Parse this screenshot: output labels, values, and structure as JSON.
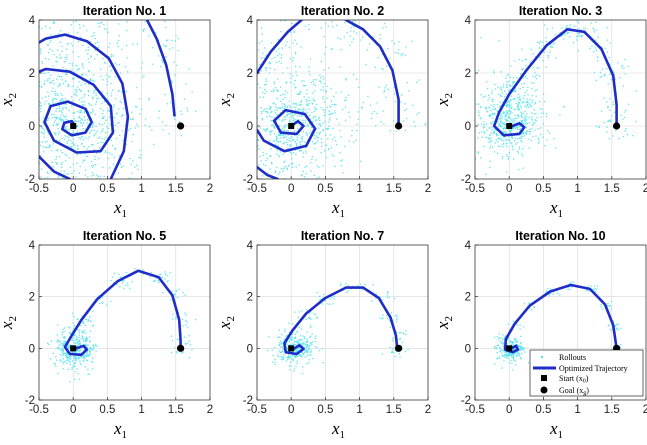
{
  "chart_data": [
    {
      "type": "scatter",
      "title": "Iteration No. 1",
      "xlabel": "x",
      "xlabel_sub": "1",
      "ylabel": "x",
      "ylabel_sub": "2",
      "xlim": [
        -0.5,
        2
      ],
      "ylim": [
        -2,
        4
      ],
      "xticks": [
        "-0.5",
        "0",
        "0.5",
        "1",
        "1.5",
        "2"
      ],
      "yticks": [
        "-2",
        "0",
        "2",
        "4"
      ],
      "grid": true,
      "start": [
        0,
        0
      ],
      "goal": [
        1.57,
        0
      ],
      "trajectory": {
        "segments": [
          [
            [
              0.03,
              0.0
            ],
            [
              -0.02,
              0.18
            ],
            [
              -0.13,
              0.12
            ],
            [
              -0.16,
              -0.12
            ],
            [
              -0.02,
              -0.35
            ],
            [
              0.18,
              -0.25
            ],
            [
              0.27,
              0.15
            ],
            [
              0.18,
              0.65
            ],
            [
              -0.08,
              0.92
            ],
            [
              -0.33,
              0.75
            ],
            [
              -0.42,
              0.15
            ],
            [
              -0.28,
              -0.55
            ],
            [
              0.05,
              -1.0
            ],
            [
              0.4,
              -0.95
            ],
            [
              0.58,
              -0.25
            ],
            [
              0.55,
              0.75
            ],
            [
              0.3,
              1.55
            ],
            [
              -0.05,
              2.05
            ],
            [
              -0.4,
              2.15
            ],
            [
              -0.5,
              2.05
            ]
          ],
          [
            [
              -0.5,
              -1.15
            ],
            [
              -0.28,
              -1.72
            ],
            [
              -0.05,
              -2.0
            ]
          ],
          [
            [
              0.55,
              -2.0
            ],
            [
              0.74,
              -0.95
            ],
            [
              0.8,
              0.35
            ],
            [
              0.72,
              1.6
            ],
            [
              0.52,
              2.55
            ],
            [
              0.2,
              3.2
            ],
            [
              -0.12,
              3.45
            ],
            [
              -0.4,
              3.3
            ],
            [
              -0.5,
              3.15
            ]
          ],
          [
            [
              1.48,
              0.4
            ],
            [
              1.45,
              1.2
            ],
            [
              1.36,
              2.3
            ],
            [
              1.22,
              3.3
            ],
            [
              1.08,
              4.0
            ]
          ]
        ]
      },
      "rollouts": {
        "center": [
          0.0,
          0.3
        ],
        "spread": [
          0.45,
          1.5
        ],
        "count": 1000
      }
    },
    {
      "type": "scatter",
      "title": "Iteration No. 2",
      "xlabel": "x",
      "xlabel_sub": "1",
      "ylabel": "x",
      "ylabel_sub": "2",
      "xlim": [
        -0.5,
        2
      ],
      "ylim": [
        -2,
        4
      ],
      "xticks": [
        "-0.5",
        "0",
        "0.5",
        "1",
        "1.5",
        "2"
      ],
      "yticks": [
        "-2",
        "0",
        "2",
        "4"
      ],
      "grid": true,
      "start": [
        0,
        0
      ],
      "goal": [
        1.57,
        0
      ],
      "trajectory": {
        "segments": [
          [
            [
              0.0,
              0.0
            ],
            [
              0.1,
              0.18
            ],
            [
              0.18,
              0.0
            ],
            [
              0.08,
              -0.3
            ],
            [
              -0.15,
              -0.25
            ],
            [
              -0.25,
              0.2
            ],
            [
              -0.08,
              0.6
            ],
            [
              0.2,
              0.45
            ],
            [
              0.35,
              -0.1
            ],
            [
              0.22,
              -0.75
            ],
            [
              -0.1,
              -0.95
            ],
            [
              -0.4,
              -0.55
            ],
            [
              -0.5,
              -0.15
            ]
          ],
          [
            [
              -0.5,
              -1.55
            ],
            [
              -0.35,
              -1.85
            ],
            [
              -0.2,
              -2.0
            ]
          ],
          [
            [
              -0.5,
              2.0
            ],
            [
              -0.3,
              2.8
            ],
            [
              -0.05,
              3.55
            ],
            [
              0.15,
              4.0
            ]
          ],
          [
            [
              0.8,
              4.0
            ],
            [
              1.05,
              3.65
            ],
            [
              1.3,
              3.0
            ],
            [
              1.48,
              2.1
            ],
            [
              1.57,
              1.0
            ],
            [
              1.57,
              0.0
            ]
          ]
        ]
      },
      "rollouts": {
        "center": [
          0.05,
          0.5
        ],
        "spread": [
          0.45,
          1.2
        ],
        "count": 950
      }
    },
    {
      "type": "scatter",
      "title": "Iteration No. 3",
      "xlabel": "x",
      "xlabel_sub": "1",
      "ylabel": "x",
      "ylabel_sub": "2",
      "xlim": [
        -0.5,
        2
      ],
      "ylim": [
        -2,
        4
      ],
      "xticks": [
        "-0.5",
        "0",
        "0.5",
        "1",
        "1.5",
        "2"
      ],
      "yticks": [
        "-2",
        "0",
        "2",
        "4"
      ],
      "grid": true,
      "start": [
        0,
        0
      ],
      "goal": [
        1.57,
        0
      ],
      "trajectory": {
        "segments": [
          [
            [
              0.05,
              0.0
            ],
            [
              0.15,
              0.1
            ],
            [
              0.22,
              -0.05
            ],
            [
              0.15,
              -0.3
            ],
            [
              -0.08,
              -0.35
            ],
            [
              -0.22,
              0.0
            ],
            [
              -0.15,
              0.5
            ],
            [
              0.0,
              1.2
            ],
            [
              0.25,
              2.1
            ],
            [
              0.55,
              3.05
            ],
            [
              0.85,
              3.65
            ],
            [
              1.1,
              3.55
            ],
            [
              1.35,
              2.9
            ],
            [
              1.52,
              1.9
            ],
            [
              1.57,
              0.8
            ],
            [
              1.57,
              0.0
            ]
          ]
        ]
      },
      "rollouts": {
        "center": [
          0.0,
          0.5
        ],
        "spread": [
          0.25,
          0.8
        ],
        "count": 800
      }
    },
    {
      "type": "scatter",
      "title": "Iteration No. 5",
      "xlabel": "x",
      "xlabel_sub": "1",
      "ylabel": "x",
      "ylabel_sub": "2",
      "xlim": [
        -0.5,
        2
      ],
      "ylim": [
        -2,
        4
      ],
      "xticks": [
        "-0.5",
        "0",
        "0.5",
        "1",
        "1.5",
        "2"
      ],
      "yticks": [
        "-2",
        "0",
        "2",
        "4"
      ],
      "grid": true,
      "start": [
        0,
        0
      ],
      "goal": [
        1.57,
        0
      ],
      "trajectory": {
        "segments": [
          [
            [
              0.05,
              0.0
            ],
            [
              0.15,
              0.1
            ],
            [
              0.2,
              -0.05
            ],
            [
              0.12,
              -0.25
            ],
            [
              -0.05,
              -0.22
            ],
            [
              -0.12,
              0.05
            ],
            [
              -0.02,
              0.5
            ],
            [
              0.12,
              1.1
            ],
            [
              0.35,
              1.9
            ],
            [
              0.65,
              2.6
            ],
            [
              0.95,
              3.0
            ],
            [
              1.25,
              2.75
            ],
            [
              1.45,
              2.05
            ],
            [
              1.55,
              1.1
            ],
            [
              1.57,
              0.3
            ],
            [
              1.57,
              0.0
            ]
          ]
        ]
      },
      "rollouts": {
        "center": [
          0.0,
          0.0
        ],
        "spread": [
          0.15,
          0.45
        ],
        "count": 500
      }
    },
    {
      "type": "scatter",
      "title": "Iteration No. 7",
      "xlabel": "x",
      "xlabel_sub": "1",
      "ylabel": "x",
      "ylabel_sub": "2",
      "xlim": [
        -0.5,
        2
      ],
      "ylim": [
        -2,
        4
      ],
      "xticks": [
        "-0.5",
        "0",
        "0.5",
        "1",
        "1.5",
        "2"
      ],
      "yticks": [
        "-2",
        "0",
        "2",
        "4"
      ],
      "grid": true,
      "start": [
        0,
        0
      ],
      "goal": [
        1.57,
        0
      ],
      "trajectory": {
        "segments": [
          [
            [
              0.05,
              0.0
            ],
            [
              0.12,
              0.12
            ],
            [
              0.18,
              -0.02
            ],
            [
              0.08,
              -0.22
            ],
            [
              -0.08,
              -0.15
            ],
            [
              -0.1,
              0.2
            ],
            [
              0.02,
              0.7
            ],
            [
              0.22,
              1.35
            ],
            [
              0.5,
              1.95
            ],
            [
              0.8,
              2.35
            ],
            [
              1.05,
              2.35
            ],
            [
              1.28,
              1.95
            ],
            [
              1.45,
              1.2
            ],
            [
              1.53,
              0.5
            ],
            [
              1.55,
              0.0
            ]
          ]
        ]
      },
      "rollouts": {
        "center": [
          0.05,
          0.0
        ],
        "spread": [
          0.15,
          0.35
        ],
        "count": 450
      }
    },
    {
      "type": "scatter",
      "title": "Iteration No. 10",
      "xlabel": "x",
      "xlabel_sub": "1",
      "ylabel": "x",
      "ylabel_sub": "2",
      "xlim": [
        -0.5,
        2
      ],
      "ylim": [
        -2,
        4
      ],
      "xticks": [
        "-0.5",
        "0",
        "0.5",
        "1",
        "1.5",
        "2"
      ],
      "yticks": [
        "-2",
        "0",
        "2",
        "4"
      ],
      "grid": true,
      "start": [
        0,
        0
      ],
      "goal": [
        1.57,
        0
      ],
      "trajectory": {
        "segments": [
          [
            [
              0.03,
              0.0
            ],
            [
              0.1,
              0.1
            ],
            [
              0.13,
              -0.05
            ],
            [
              0.05,
              -0.15
            ],
            [
              -0.06,
              -0.05
            ],
            [
              -0.05,
              0.35
            ],
            [
              0.08,
              0.95
            ],
            [
              0.3,
              1.65
            ],
            [
              0.6,
              2.2
            ],
            [
              0.9,
              2.45
            ],
            [
              1.18,
              2.3
            ],
            [
              1.4,
              1.7
            ],
            [
              1.52,
              0.9
            ],
            [
              1.57,
              0.0
            ]
          ]
        ]
      },
      "rollouts": {
        "center": [
          0.0,
          0.0
        ],
        "spread": [
          0.1,
          0.25
        ],
        "count": 350
      }
    }
  ],
  "legend": {
    "rollouts": "Rollouts",
    "trajectory": "Optimized Trajectory",
    "start": "Start",
    "start_sym": "(x",
    "start_sub": "0",
    "start_close": ")",
    "goal": "Goal",
    "goal_sym": "(x",
    "goal_sub": "g",
    "goal_close": ")"
  },
  "colors": {
    "rollouts": "#5ee6ee",
    "trajectory": "#1f2dc8",
    "marker": "#000000",
    "grid": "#d7d7d7"
  }
}
